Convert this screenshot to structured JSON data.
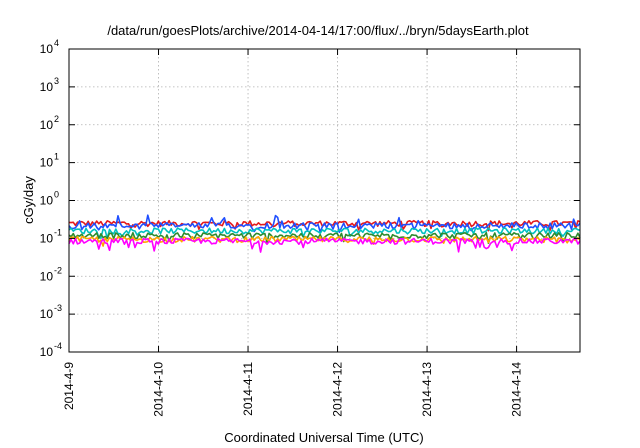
{
  "chart_data": {
    "type": "line",
    "title": "/data/run/goesPlots/archive/2014-04-14/17:00/flux/../bryn/5daysEarth.plot",
    "xlabel": "Coordinated Universal Time (UTC)",
    "ylabel": "cGy/day",
    "y_scale": "log",
    "ylim": [
      0.0001,
      10000
    ],
    "y_ticks": [
      {
        "value": 0.0001,
        "base": "10",
        "exp": "-4"
      },
      {
        "value": 0.001,
        "base": "10",
        "exp": "-3"
      },
      {
        "value": 0.01,
        "base": "10",
        "exp": "-2"
      },
      {
        "value": 0.1,
        "base": "10",
        "exp": "-1"
      },
      {
        "value": 1,
        "base": "10",
        "exp": "0"
      },
      {
        "value": 10,
        "base": "10",
        "exp": "1"
      },
      {
        "value": 100,
        "base": "10",
        "exp": "2"
      },
      {
        "value": 1000,
        "base": "10",
        "exp": "3"
      },
      {
        "value": 10000,
        "base": "10",
        "exp": "4"
      }
    ],
    "xlim": [
      "2014-04-09T00:00",
      "2014-04-14T17:00"
    ],
    "x_ticks": [
      {
        "value": "2014-04-09T00:00",
        "label": "2014-4-9"
      },
      {
        "value": "2014-04-10T00:00",
        "label": "2014-4-10"
      },
      {
        "value": "2014-04-11T00:00",
        "label": "2014-4-11"
      },
      {
        "value": "2014-04-12T00:00",
        "label": "2014-4-12"
      },
      {
        "value": "2014-04-13T00:00",
        "label": "2014-4-13"
      },
      {
        "value": "2014-04-14T00:00",
        "label": "2014-4-14"
      }
    ],
    "grid": true,
    "series": [
      {
        "color": "#e41a1c",
        "level": 0.25,
        "values_note": "noisy ~0.17–0.30"
      },
      {
        "color": "#1f4fff",
        "level": 0.22,
        "values_note": "noisy ~0.12–0.40"
      },
      {
        "color": "#00c0c0",
        "level": 0.16,
        "values_note": "noisy ~0.13–0.19"
      },
      {
        "color": "#2e8b2e",
        "level": 0.12,
        "values_note": "noisy ~0.10–0.14"
      },
      {
        "color": "#ffa500",
        "level": 0.095,
        "values_note": "noisy ~0.08–0.11"
      },
      {
        "color": "#ff00ff",
        "level": 0.085,
        "values_note": "noisy ~0.05–0.10"
      }
    ]
  }
}
